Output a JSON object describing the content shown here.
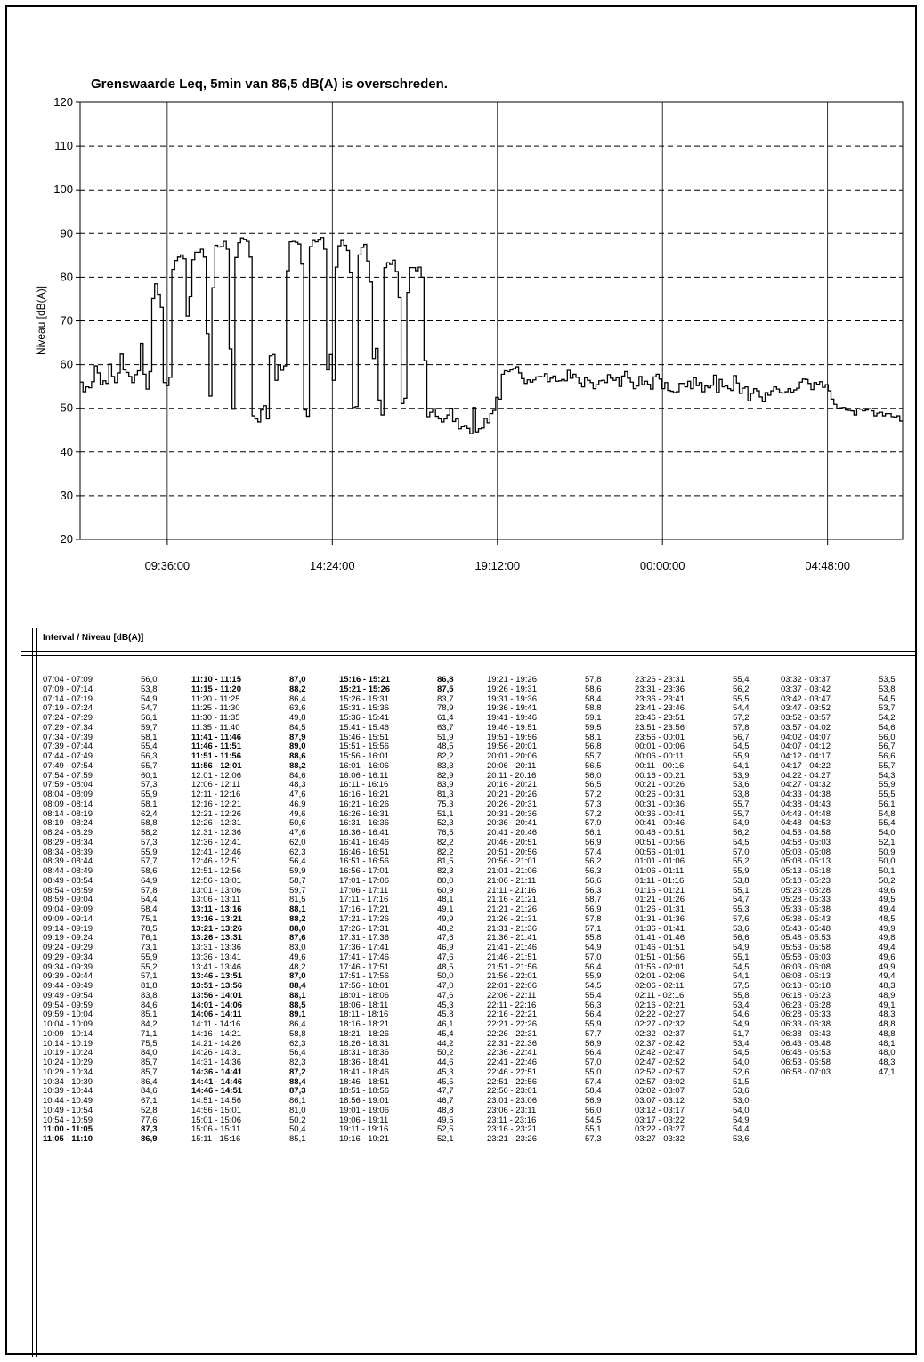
{
  "chart_data": {
    "type": "line",
    "title": "Grenswaarde Leq, 5min van 86,5 dB(A) is overschreden.",
    "ylabel": "Niveau [dB(A)]",
    "xlabel": "",
    "ylim": [
      20,
      120
    ],
    "yticks": [
      "20",
      "30",
      "40",
      "50",
      "60",
      "70",
      "80",
      "90",
      "100",
      "110",
      "120"
    ],
    "xticks": [
      "09:36:00",
      "14:24:00",
      "19:12:00",
      "00:00:00",
      "04:48:00"
    ],
    "grid": true,
    "x_start": "07:04",
    "x_interval_minutes": 5,
    "values": []
  },
  "table": {
    "title": "Interval / Niveau [dB(A)]",
    "columns": [
      [
        [
          "07:04 - 07:09",
          "56,0"
        ],
        [
          "07:09 - 07:14",
          "53,8"
        ],
        [
          "07:14 - 07:19",
          "54,9"
        ],
        [
          "07:19 - 07:24",
          "54,7"
        ],
        [
          "07:24 - 07:29",
          "56,1"
        ],
        [
          "07:29 - 07:34",
          "59,7"
        ],
        [
          "07:34 - 07:39",
          "58,1"
        ],
        [
          "07:39 - 07:44",
          "55,4"
        ],
        [
          "07:44 - 07:49",
          "56,3"
        ],
        [
          "07:49 - 07:54",
          "55,7"
        ],
        [
          "07:54 - 07:59",
          "60,1"
        ],
        [
          "07:59 - 08:04",
          "57,3"
        ],
        [
          "08:04 - 08:09",
          "55,9"
        ],
        [
          "08:09 - 08:14",
          "58,1"
        ],
        [
          "08:14 - 08:19",
          "62,4"
        ],
        [
          "08:19 - 08:24",
          "58,8"
        ],
        [
          "08:24 - 08:29",
          "58,2"
        ],
        [
          "08:29 - 08:34",
          "57,3"
        ],
        [
          "08:34 - 08:39",
          "55,9"
        ],
        [
          "08:39 - 08:44",
          "57,7"
        ],
        [
          "08:44 - 08:49",
          "58,6"
        ],
        [
          "08:49 - 08:54",
          "64,9"
        ],
        [
          "08:54 - 08:59",
          "57,8"
        ],
        [
          "08:59 - 09:04",
          "54,4"
        ],
        [
          "09:04 - 09:09",
          "58,4"
        ],
        [
          "09:09 - 09:14",
          "75,1"
        ],
        [
          "09:14 - 09:19",
          "78,5"
        ],
        [
          "09:19 - 09:24",
          "76,1"
        ],
        [
          "09:24 - 09:29",
          "73,1"
        ],
        [
          "09:29 - 09:34",
          "55,9"
        ],
        [
          "09:34 - 09:39",
          "55,2"
        ],
        [
          "09:39 - 09:44",
          "57,1"
        ],
        [
          "09:44 - 09:49",
          "81,8"
        ],
        [
          "09:49 - 09:54",
          "83,8"
        ],
        [
          "09:54 - 09:59",
          "84,6"
        ],
        [
          "09:59 - 10:04",
          "85,1"
        ],
        [
          "10:04 - 10:09",
          "84,2"
        ],
        [
          "10:09 - 10:14",
          "71,1"
        ],
        [
          "10:14 - 10:19",
          "75,5"
        ],
        [
          "10:19 - 10:24",
          "84,0"
        ],
        [
          "10:24 - 10:29",
          "85,7"
        ],
        [
          "10:29 - 10:34",
          "85,7"
        ],
        [
          "10:34 - 10:39",
          "86,4"
        ],
        [
          "10:39 - 10:44",
          "84,6"
        ],
        [
          "10:44 - 10:49",
          "67,1"
        ],
        [
          "10:49 - 10:54",
          "52,8"
        ],
        [
          "10:54 - 10:59",
          "77,6"
        ],
        [
          "11:00 - 11:05",
          "87,3"
        ],
        [
          "11:05 - 11:10",
          "86,9"
        ]
      ],
      [
        [
          "11:10 - 11:15",
          "87,0"
        ],
        [
          "11:15 - 11:20",
          "88,2"
        ],
        [
          "11:20 - 11:25",
          "86,4"
        ],
        [
          "11:25 - 11:30",
          "63,6"
        ],
        [
          "11:30 - 11:35",
          "49,8"
        ],
        [
          "11:35 - 11:40",
          "84,5"
        ],
        [
          "11:41 - 11:46",
          "87,9"
        ],
        [
          "11:46 - 11:51",
          "89,0"
        ],
        [
          "11:51 - 11:56",
          "88,6"
        ],
        [
          "11:56 - 12:01",
          "88,2"
        ],
        [
          "12:01 - 12:06",
          "84,6"
        ],
        [
          "12:06 - 12:11",
          "48,3"
        ],
        [
          "12:11 - 12:16",
          "47,6"
        ],
        [
          "12:16 - 12:21",
          "46,9"
        ],
        [
          "12:21 - 12:26",
          "49,6"
        ],
        [
          "12:26 - 12:31",
          "50,6"
        ],
        [
          "12:31 - 12:36",
          "47,6"
        ],
        [
          "12:36 - 12:41",
          "62,0"
        ],
        [
          "12:41 - 12:46",
          "62,3"
        ],
        [
          "12:46 - 12:51",
          "56,4"
        ],
        [
          "12:51 - 12:56",
          "59,9"
        ],
        [
          "12:56 - 13:01",
          "58,7"
        ],
        [
          "13:01 - 13:06",
          "59,7"
        ],
        [
          "13:06 - 13:11",
          "81,5"
        ],
        [
          "13:11 - 13:16",
          "88,1"
        ],
        [
          "13:16 - 13:21",
          "88,2"
        ],
        [
          "13:21 - 13:26",
          "88,0"
        ],
        [
          "13:26 - 13:31",
          "87,6"
        ],
        [
          "13:31 - 13:36",
          "83,0"
        ],
        [
          "13:36 - 13:41",
          "49,6"
        ],
        [
          "13:41 - 13:46",
          "48,2"
        ],
        [
          "13:46 - 13:51",
          "87,0"
        ],
        [
          "13:51 - 13:56",
          "88,4"
        ],
        [
          "13:56 - 14:01",
          "88,1"
        ],
        [
          "14:01 - 14:06",
          "88,5"
        ],
        [
          "14:06 - 14:11",
          "89,1"
        ],
        [
          "14:11 - 14:16",
          "86,4"
        ],
        [
          "14:16 - 14:21",
          "58,8"
        ],
        [
          "14:21 - 14:26",
          "62,3"
        ],
        [
          "14:26 - 14:31",
          "56,4"
        ],
        [
          "14:31 - 14:36",
          "82,3"
        ],
        [
          "14:36 - 14:41",
          "87,2"
        ],
        [
          "14:41 - 14:46",
          "88,4"
        ],
        [
          "14:46 - 14:51",
          "87,3"
        ],
        [
          "14:51 - 14:56",
          "86,1"
        ],
        [
          "14:56 - 15:01",
          "81,0"
        ],
        [
          "15:01 - 15:06",
          "50,2"
        ],
        [
          "15:06 - 15:11",
          "50,4"
        ],
        [
          "15:11 - 15:16",
          "85,1"
        ]
      ],
      [
        [
          "15:16 - 15:21",
          "86,8"
        ],
        [
          "15:21 - 15:26",
          "87,5"
        ],
        [
          "15:26 - 15:31",
          "83,7"
        ],
        [
          "15:31 - 15:36",
          "78,9"
        ],
        [
          "15:36 - 15:41",
          "61,4"
        ],
        [
          "15:41 - 15:46",
          "63,7"
        ],
        [
          "15:46 - 15:51",
          "51,9"
        ],
        [
          "15:51 - 15:56",
          "48,5"
        ],
        [
          "15:56 - 16:01",
          "82,2"
        ],
        [
          "16:01 - 16:06",
          "83,3"
        ],
        [
          "16:06 - 16:11",
          "82,9"
        ],
        [
          "16:11 - 16:16",
          "83,9"
        ],
        [
          "16:16 - 16:21",
          "81,3"
        ],
        [
          "16:21 - 16:26",
          "75,3"
        ],
        [
          "16:26 - 16:31",
          "51,1"
        ],
        [
          "16:31 - 16:36",
          "52,3"
        ],
        [
          "16:36 - 16:41",
          "76,5"
        ],
        [
          "16:41 - 16:46",
          "82,2"
        ],
        [
          "16:46 - 16:51",
          "82,2"
        ],
        [
          "16:51 - 16:56",
          "81,5"
        ],
        [
          "16:56 - 17:01",
          "82,3"
        ],
        [
          "17:01 - 17:06",
          "80,0"
        ],
        [
          "17:06 - 17:11",
          "60,9"
        ],
        [
          "17:11 - 17:16",
          "48,1"
        ],
        [
          "17:16 - 17:21",
          "49,1"
        ],
        [
          "17:21 - 17:26",
          "49,9"
        ],
        [
          "17:26 - 17:31",
          "48,2"
        ],
        [
          "17:31 - 17:36",
          "47,6"
        ],
        [
          "17:36 - 17:41",
          "46,9"
        ],
        [
          "17:41 - 17:46",
          "47,6"
        ],
        [
          "17:46 - 17:51",
          "48,5"
        ],
        [
          "17:51 - 17:56",
          "50,0"
        ],
        [
          "17:56 - 18:01",
          "47,0"
        ],
        [
          "18:01 - 18:06",
          "47,6"
        ],
        [
          "18:06 - 18:11",
          "45,3"
        ],
        [
          "18:11 - 18:16",
          "45,8"
        ],
        [
          "18:16 - 18:21",
          "46,1"
        ],
        [
          "18:21 - 18:26",
          "45,4"
        ],
        [
          "18:26 - 18:31",
          "44,2"
        ],
        [
          "18:31 - 18:36",
          "50,2"
        ],
        [
          "18:36 - 18:41",
          "44,6"
        ],
        [
          "18:41 - 18:46",
          "45,3"
        ],
        [
          "18:46 - 18:51",
          "45,5"
        ],
        [
          "18:51 - 18:56",
          "47,7"
        ],
        [
          "18:56 - 19:01",
          "46,7"
        ],
        [
          "19:01 - 19:06",
          "48,8"
        ],
        [
          "19:06 - 19:11",
          "49,5"
        ],
        [
          "19:11 - 19:16",
          "52,5"
        ],
        [
          "19:16 - 19:21",
          "52,1"
        ]
      ],
      [
        [
          "19:21 - 19:26",
          "57,8"
        ],
        [
          "19:26 - 19:31",
          "58,6"
        ],
        [
          "19:31 - 19:36",
          "58,4"
        ],
        [
          "19:36 - 19:41",
          "58,8"
        ],
        [
          "19:41 - 19:46",
          "59,1"
        ],
        [
          "19:46 - 19:51",
          "59,5"
        ],
        [
          "19:51 - 19:56",
          "58,1"
        ],
        [
          "19:56 - 20:01",
          "56,8"
        ],
        [
          "20:01 - 20:06",
          "55,7"
        ],
        [
          "20:06 - 20:11",
          "56,5"
        ],
        [
          "20:11 - 20:16",
          "56,0"
        ],
        [
          "20:16 - 20:21",
          "56,5"
        ],
        [
          "20:21 - 20:26",
          "57,2"
        ],
        [
          "20:26 - 20:31",
          "57,3"
        ],
        [
          "20:31 - 20:36",
          "57,2"
        ],
        [
          "20:36 - 20:41",
          "57,9"
        ],
        [
          "20:41 - 20:46",
          "56,1"
        ],
        [
          "20:46 - 20:51",
          "56,9"
        ],
        [
          "20:51 - 20:56",
          "57,4"
        ],
        [
          "20:56 - 21:01",
          "56,2"
        ],
        [
          "21:01 - 21:06",
          "56,3"
        ],
        [
          "21:06 - 21:11",
          "56,6"
        ],
        [
          "21:11 - 21:16",
          "56,3"
        ],
        [
          "21:16 - 21:21",
          "58,7"
        ],
        [
          "21:21 - 21:26",
          "56,9"
        ],
        [
          "21:26 - 21:31",
          "57,8"
        ],
        [
          "21:31 - 21:36",
          "57,1"
        ],
        [
          "21:36 - 21:41",
          "55,8"
        ],
        [
          "21:41 - 21:46",
          "54,9"
        ],
        [
          "21:46 - 21:51",
          "57,0"
        ],
        [
          "21:51 - 21:56",
          "56,4"
        ],
        [
          "21:56 - 22:01",
          "55,9"
        ],
        [
          "22:01 - 22:06",
          "54,5"
        ],
        [
          "22:06 - 22:11",
          "55,4"
        ],
        [
          "22:11 - 22:16",
          "56,3"
        ],
        [
          "22:16 - 22:21",
          "56,4"
        ],
        [
          "22:21 - 22:26",
          "55,9"
        ],
        [
          "22:26 - 22:31",
          "57,7"
        ],
        [
          "22:31 - 22:36",
          "56,9"
        ],
        [
          "22:36 - 22:41",
          "56,4"
        ],
        [
          "22:41 - 22:46",
          "57,0"
        ],
        [
          "22:46 - 22:51",
          "55,0"
        ],
        [
          "22:51 - 22:56",
          "57,4"
        ],
        [
          "22:56 - 23:01",
          "58,4"
        ],
        [
          "23:01 - 23:06",
          "56,9"
        ],
        [
          "23:06 - 23:11",
          "56,0"
        ],
        [
          "23:11 - 23:16",
          "54,5"
        ],
        [
          "23:16 - 23:21",
          "55,1"
        ],
        [
          "23:21 - 23:26",
          "57,3"
        ]
      ],
      [
        [
          "23:26 - 23:31",
          "55,4"
        ],
        [
          "23:31 - 23:36",
          "56,2"
        ],
        [
          "23:36 - 23:41",
          "55,5"
        ],
        [
          "23:41 - 23:46",
          "54,4"
        ],
        [
          "23:46 - 23:51",
          "57,2"
        ],
        [
          "23:51 - 23:56",
          "57,8"
        ],
        [
          "23:56 - 00:01",
          "56,7"
        ],
        [
          "00:01 - 00:06",
          "54,5"
        ],
        [
          "00:06 - 00:11",
          "55,9"
        ],
        [
          "00:11 - 00:16",
          "54,1"
        ],
        [
          "00:16 - 00:21",
          "53,9"
        ],
        [
          "00:21 - 00:26",
          "53,6"
        ],
        [
          "00:26 - 00:31",
          "53,8"
        ],
        [
          "00:31 - 00:36",
          "55,7"
        ],
        [
          "00:36 - 00:41",
          "55,7"
        ],
        [
          "00:41 - 00:46",
          "54,9"
        ],
        [
          "00:46 - 00:51",
          "56,2"
        ],
        [
          "00:51 - 00:56",
          "54,5"
        ],
        [
          "00:56 - 01:01",
          "57,0"
        ],
        [
          "01:01 - 01:06",
          "55,2"
        ],
        [
          "01:06 - 01:11",
          "55,9"
        ],
        [
          "01:11 - 01:16",
          "53,8"
        ],
        [
          "01:16 - 01:21",
          "55,1"
        ],
        [
          "01:21 - 01:26",
          "54,7"
        ],
        [
          "01:26 - 01:31",
          "55,3"
        ],
        [
          "01:31 - 01:36",
          "57,6"
        ],
        [
          "01:36 - 01:41",
          "53,6"
        ],
        [
          "01:41 - 01:46",
          "56,6"
        ],
        [
          "01:46 - 01:51",
          "54,9"
        ],
        [
          "01:51 - 01:56",
          "55,1"
        ],
        [
          "01:56 - 02:01",
          "54,5"
        ],
        [
          "02:01 - 02:06",
          "54,1"
        ],
        [
          "02:06 - 02:11",
          "57,5"
        ],
        [
          "02:11 - 02:16",
          "55,8"
        ],
        [
          "02:16 - 02:21",
          "53,4"
        ],
        [
          "02:22 - 02:27",
          "54,6"
        ],
        [
          "02:27 - 02:32",
          "54,9"
        ],
        [
          "02:32 - 02:37",
          "51,7"
        ],
        [
          "02:37 - 02:42",
          "53,4"
        ],
        [
          "02:42 - 02:47",
          "54,5"
        ],
        [
          "02:47 - 02:52",
          "54,0"
        ],
        [
          "02:52 - 02:57",
          "52,6"
        ],
        [
          "02:57 - 03:02",
          "51,5"
        ],
        [
          "03:02 - 03:07",
          "53,6"
        ],
        [
          "03:07 - 03:12",
          "53,0"
        ],
        [
          "03:12 - 03:17",
          "54,0"
        ],
        [
          "03:17 - 03:22",
          "54,9"
        ],
        [
          "03:22 - 03:27",
          "54,4"
        ],
        [
          "03:27 - 03:32",
          "53,6"
        ]
      ],
      [
        [
          "03:32 - 03:37",
          "53,5"
        ],
        [
          "03:37 - 03:42",
          "53,8"
        ],
        [
          "03:42 - 03:47",
          "54,5"
        ],
        [
          "03:47 - 03:52",
          "53,7"
        ],
        [
          "03:52 - 03:57",
          "54,2"
        ],
        [
          "03:57 - 04:02",
          "54,6"
        ],
        [
          "04:02 - 04:07",
          "56,0"
        ],
        [
          "04:07 - 04:12",
          "56,7"
        ],
        [
          "04:12 - 04:17",
          "56,6"
        ],
        [
          "04:17 - 04:22",
          "55,7"
        ],
        [
          "04:22 - 04:27",
          "54,3"
        ],
        [
          "04:27 - 04:32",
          "55,9"
        ],
        [
          "04:33 - 04:38",
          "55,5"
        ],
        [
          "04:38 - 04:43",
          "56,1"
        ],
        [
          "04:43 - 04:48",
          "54,8"
        ],
        [
          "04:48 - 04:53",
          "55,4"
        ],
        [
          "04:53 - 04:58",
          "54,0"
        ],
        [
          "04:58 - 05:03",
          "52,1"
        ],
        [
          "05:03 - 05:08",
          "50,9"
        ],
        [
          "05:08 - 05:13",
          "50,0"
        ],
        [
          "05:13 - 05:18",
          "50,1"
        ],
        [
          "05:18 - 05:23",
          "50,2"
        ],
        [
          "05:23 - 05:28",
          "49,6"
        ],
        [
          "05:28 - 05:33",
          "49,5"
        ],
        [
          "05:33 - 05:38",
          "49,4"
        ],
        [
          "05:38 - 05:43",
          "48,5"
        ],
        [
          "05:43 - 05:48",
          "49,9"
        ],
        [
          "05:48 - 05:53",
          "49,8"
        ],
        [
          "05:53 - 05:58",
          "49,4"
        ],
        [
          "05:58 - 06:03",
          "49,6"
        ],
        [
          "06:03 - 06:08",
          "49,9"
        ],
        [
          "06:08 - 06:13",
          "49,4"
        ],
        [
          "06:13 - 06:18",
          "48,3"
        ],
        [
          "06:18 - 06:23",
          "48,9"
        ],
        [
          "06:23 - 06:28",
          "49,1"
        ],
        [
          "06:28 - 06:33",
          "48,3"
        ],
        [
          "06:33 - 06:38",
          "48,8"
        ],
        [
          "06:38 - 06:43",
          "48,8"
        ],
        [
          "06:43 - 06:48",
          "48,1"
        ],
        [
          "06:48 - 06:53",
          "48,0"
        ],
        [
          "06:53 - 06:58",
          "48,3"
        ],
        [
          "06:58 - 07:03",
          "47,1"
        ]
      ]
    ]
  }
}
